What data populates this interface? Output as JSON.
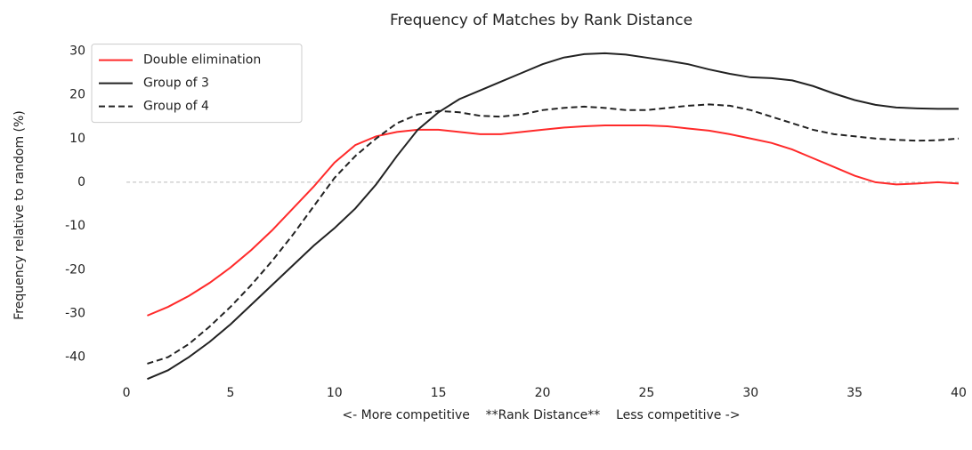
{
  "chart_data": {
    "type": "line",
    "title": "Frequency of Matches by Rank Distance",
    "xlabel": "<- More competitive    **Rank Distance**    Less competitive ->",
    "ylabel": "Frequency relative to random (%)",
    "x": [
      1,
      2,
      3,
      4,
      5,
      6,
      7,
      8,
      9,
      10,
      11,
      12,
      13,
      14,
      15,
      16,
      17,
      18,
      19,
      20,
      21,
      22,
      23,
      24,
      25,
      26,
      27,
      28,
      29,
      30,
      31,
      32,
      33,
      34,
      35,
      36,
      37,
      38,
      39,
      40
    ],
    "series": [
      {
        "name": "Double elimination",
        "color": "#ff2a2a",
        "linestyle": "solid",
        "values": [
          -30.5,
          -28.5,
          -26,
          -23,
          -19.5,
          -15.5,
          -11,
          -6,
          -1,
          4.5,
          8.5,
          10.5,
          11.5,
          12,
          12,
          11.5,
          11,
          11,
          11.5,
          12,
          12.5,
          12.8,
          13,
          13,
          13,
          12.8,
          12.3,
          11.8,
          11,
          10,
          9,
          7.5,
          5.5,
          3.5,
          1.5,
          0,
          -0.5,
          -0.3,
          0,
          -0.3
        ]
      },
      {
        "name": "Group of 3",
        "color": "#222222",
        "linestyle": "solid",
        "values": [
          -45,
          -43,
          -40,
          -36.5,
          -32.5,
          -28,
          -23.5,
          -19,
          -14.5,
          -10.5,
          -6,
          -0.5,
          6,
          12,
          16,
          19,
          21,
          23,
          25,
          27,
          28.5,
          29.3,
          29.5,
          29.2,
          28.5,
          27.8,
          27,
          25.8,
          24.8,
          24,
          23.8,
          23.3,
          22,
          20.3,
          18.8,
          17.7,
          17.1,
          16.9,
          16.8,
          16.8
        ]
      },
      {
        "name": "Group of 4",
        "color": "#222222",
        "linestyle": "dashed",
        "values": [
          -41.5,
          -40,
          -37,
          -33,
          -28.5,
          -23.5,
          -18,
          -12,
          -5.5,
          1,
          6,
          10,
          13.5,
          15.5,
          16.3,
          16,
          15.2,
          15,
          15.5,
          16.5,
          17,
          17.3,
          17,
          16.5,
          16.5,
          17,
          17.5,
          17.8,
          17.5,
          16.5,
          15,
          13.5,
          12,
          11,
          10.5,
          10,
          9.7,
          9.5,
          9.6,
          10
        ]
      }
    ],
    "hline": 0,
    "xlim": [
      -1.8,
      40
    ],
    "xticks": [
      0,
      5,
      10,
      15,
      20,
      25,
      30,
      35,
      40
    ],
    "ylim": [
      -47,
      32
    ],
    "yticks": [
      -40,
      -30,
      -20,
      -10,
      0,
      10,
      20,
      30
    ],
    "legend": "upper left"
  }
}
